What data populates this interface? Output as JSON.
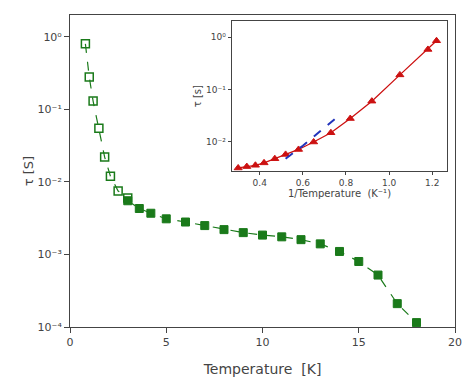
{
  "chart_data": [
    {
      "type": "line",
      "x_label": "Temperature  [K]",
      "y_label": "τ [S]",
      "log": "y",
      "grid": false,
      "xlim": [
        0,
        20
      ],
      "xticks": [
        0,
        5,
        10,
        15,
        20
      ],
      "ylim": [
        0.0001,
        2.0
      ],
      "yticks": [
        {
          "value": 0.0001,
          "label": "10⁻⁴"
        },
        {
          "value": 0.001,
          "label": "10⁻³"
        },
        {
          "value": 0.01,
          "label": "10⁻²"
        },
        {
          "value": 0.1,
          "label": "10⁻¹"
        },
        {
          "value": 1,
          "label": "10⁰"
        }
      ],
      "series": [
        {
          "x": [
            0.8,
            1.0,
            1.2,
            1.5,
            1.8,
            2.1,
            2.5,
            3.0
          ],
          "values": [
            0.8,
            0.28,
            0.13,
            0.055,
            0.022,
            0.012,
            0.0075,
            0.006
          ],
          "color": "#1a7a1a",
          "marker": "square-open",
          "line_style": "dashed"
        },
        {
          "x": [
            3.0,
            3.6,
            4.2,
            5.0,
            6.0,
            7.0,
            8.0,
            9.0,
            10.0,
            11.0,
            12.0,
            13.0,
            14.0,
            15.0,
            16.0,
            17.0,
            18.0
          ],
          "values": [
            0.0055,
            0.0043,
            0.0037,
            0.0031,
            0.0028,
            0.0025,
            0.0022,
            0.002,
            0.00185,
            0.00175,
            0.0016,
            0.0014,
            0.0011,
            0.0008,
            0.00052,
            0.00021,
            0.000115
          ],
          "color": "#1a7a1a",
          "marker": "square",
          "line_style": "dashed"
        }
      ]
    },
    {
      "type": "line",
      "x_label": "1/Temperature  (K⁻¹)",
      "y_label": "τ [s]",
      "log": "y",
      "grid": false,
      "xlim": [
        0.27,
        1.27
      ],
      "xticks": [
        0.4,
        0.6,
        0.8,
        {
          "value": 1.0,
          "label": "1.0"
        },
        1.2
      ],
      "ylim": [
        0.0028,
        2.0
      ],
      "yticks": [
        {
          "value": 0.01,
          "label": "10⁻²"
        },
        {
          "value": 0.1,
          "label": "10⁻¹"
        },
        {
          "value": 1,
          "label": "10⁰"
        }
      ],
      "series": [
        {
          "x": [
            0.3,
            0.34,
            0.38,
            0.42,
            0.47,
            0.52,
            0.58,
            0.65,
            0.73,
            0.82,
            0.92,
            1.05,
            1.18,
            1.22
          ],
          "values": [
            0.0032,
            0.0034,
            0.0036,
            0.004,
            0.0048,
            0.0058,
            0.0072,
            0.01,
            0.015,
            0.028,
            0.06,
            0.19,
            0.58,
            0.85
          ],
          "color": "#cc1111",
          "marker": "triangle-up",
          "line_style": "solid"
        },
        {
          "x": [
            0.52,
            0.6,
            0.68,
            0.76
          ],
          "values": [
            0.0048,
            0.0085,
            0.016,
            0.03
          ],
          "color": "#2233bb",
          "line_style": "dashed"
        }
      ]
    }
  ]
}
